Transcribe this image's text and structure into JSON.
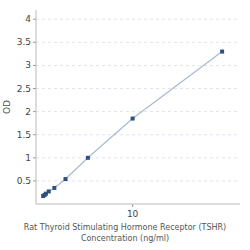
{
  "chart_data": {
    "type": "line",
    "xlabel": "Rat Thyroid Stimulating Hormone Receptor (TSHR)\nConcentration (ng/ml)",
    "ylabel": "OD",
    "x": [
      0,
      0.156,
      0.312,
      0.625,
      1.25,
      2.5,
      5,
      10,
      20
    ],
    "series": [
      {
        "color": "#2c5082",
        "marker": "square",
        "values": [
          0.172,
          0.196,
          0.224,
          0.272,
          0.348,
          0.54,
          1.0,
          1.85,
          3.3
        ]
      }
    ],
    "xlim": [
      -0.8,
      22
    ],
    "xticks": [
      10
    ],
    "ylim": [
      0,
      4.2
    ],
    "yticks": [
      0.5,
      1,
      1.5,
      2,
      2.5,
      3,
      3.5,
      4
    ],
    "grid": true
  }
}
